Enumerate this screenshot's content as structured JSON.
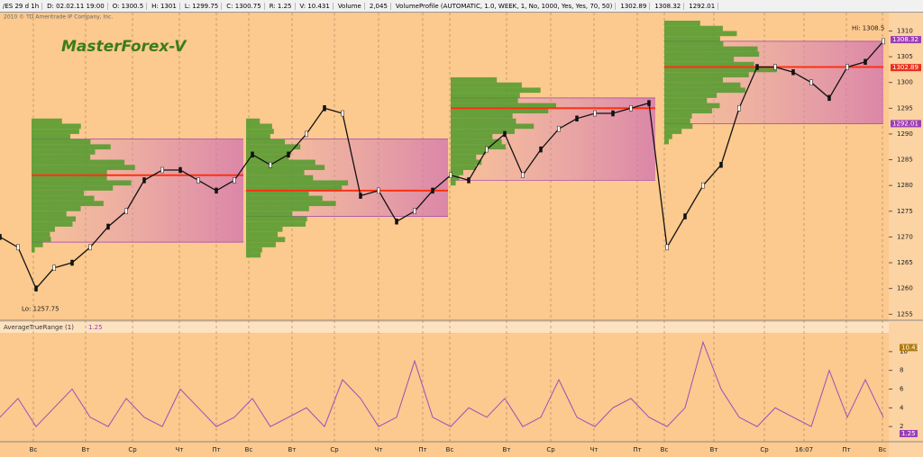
{
  "header": {
    "items": [
      "/ES 29 d 1h",
      "D: 02.02.11 19:00",
      "O: 1300.5",
      "H: 1301",
      "L: 1299.75",
      "C: 1300.75",
      "R: 1.25",
      "V: 10.431",
      "Volume",
      "2,045",
      "VolumeProfile (AUTOMATIC, 1.0, WEEK, 1, No, 1000, Yes, Yes, 70, 50)",
      "1302.89",
      "1308.32",
      "1292.01"
    ],
    "copyright": "2010 © TD Ameritrade IP Company, Inc."
  },
  "watermark": "MasterForex-V",
  "price_panel": {
    "hi_label": "Hi: 1308.5",
    "lo_label": "Lo: 1257.75",
    "ylim": [
      1254,
      1312
    ],
    "yticks": [
      1255,
      1260,
      1265,
      1270,
      1275,
      1280,
      1285,
      1290,
      1295,
      1300,
      1305,
      1310
    ],
    "markers": [
      {
        "label": "1308.32",
        "value": 1308.32,
        "color": "#9b3fb5"
      },
      {
        "label": "1302.89",
        "value": 1302.89,
        "color": "#e8301c"
      },
      {
        "label": "1292.01",
        "value": 1292.01,
        "color": "#9b3fb5"
      }
    ],
    "values": [
      1270,
      1268,
      1260,
      1264,
      1265,
      1268,
      1272,
      1275,
      1281,
      1283,
      1283,
      1281,
      1279,
      1281,
      1286,
      1284,
      1286,
      1290,
      1295,
      1294,
      1278,
      1279,
      1273,
      1275,
      1279,
      1282,
      1281,
      1287,
      1290,
      1282,
      1287,
      1291,
      1293,
      1294,
      1294,
      1295,
      1296,
      1268,
      1274,
      1280,
      1284,
      1295,
      1303,
      1303,
      1302,
      1300,
      1297,
      1303,
      1304,
      1308
    ]
  },
  "atr_panel": {
    "title": "AverageTrueRange (1)",
    "current": "1.25",
    "ylim": [
      0,
      12
    ],
    "yticks": [
      2,
      4,
      6,
      8,
      10
    ],
    "markers": [
      {
        "label": "10.43",
        "value": 10.43,
        "color": "#b07a10"
      },
      {
        "label": "1.25",
        "value": 1.25,
        "color": "#9b3fb5"
      }
    ],
    "values": [
      3,
      5,
      2,
      4,
      6,
      3,
      2,
      5,
      3,
      2,
      6,
      4,
      2,
      3,
      5,
      2,
      3,
      4,
      2,
      7,
      5,
      2,
      3,
      9,
      3,
      2,
      4,
      3,
      5,
      2,
      3,
      7,
      3,
      2,
      4,
      5,
      3,
      2,
      4,
      11,
      6,
      3,
      2,
      4,
      3,
      2,
      8,
      3,
      7,
      3
    ]
  },
  "time_axis": {
    "labels": [
      "Вс",
      "Вт",
      "Ср",
      "Чт",
      "Пт",
      "Вс",
      "Вт",
      "Ср",
      "Чт",
      "Пт",
      "Вс",
      "Вт",
      "Ср",
      "Чт",
      "Пт",
      "Вс",
      "Вт",
      "Ср",
      "16:07",
      "Пт",
      "Вс"
    ]
  }
}
